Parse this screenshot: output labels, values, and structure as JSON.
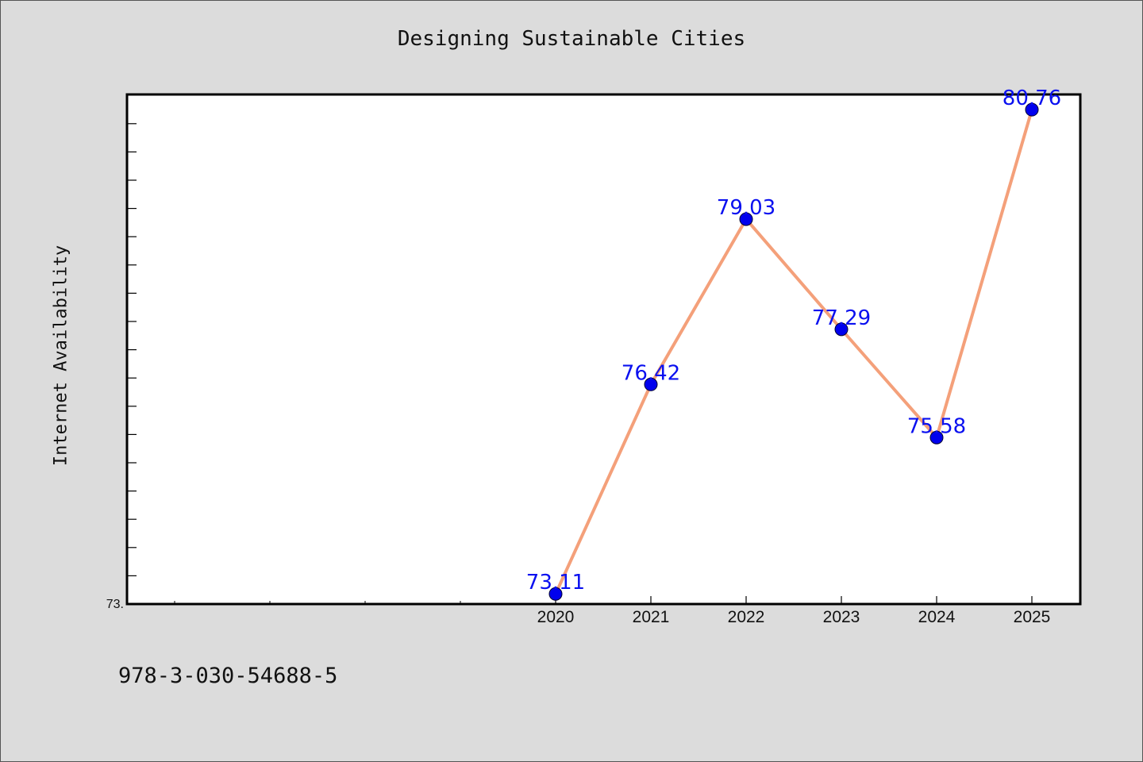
{
  "chart_data": {
    "type": "line",
    "title": "Designing Sustainable Cities",
    "xlabel": "",
    "ylabel": "Internet Availability",
    "categories": [
      "2020",
      "2021",
      "2022",
      "2023",
      "2024",
      "2025"
    ],
    "series": [
      {
        "values": [
          73.11,
          76.42,
          79.03,
          77.29,
          75.58,
          80.76
        ]
      }
    ],
    "data_labels": [
      "73.11",
      "76.42",
      "79.03",
      "77.29",
      "75.58",
      "80.76"
    ],
    "y_tick_label": "73.",
    "ylim": [
      72.95,
      81.0
    ],
    "grid": false,
    "line_color": "#f4a07a",
    "marker_color": "#0000ee",
    "label_color": "#0a10f0"
  },
  "footer_text": "978-3-030-54688-5"
}
